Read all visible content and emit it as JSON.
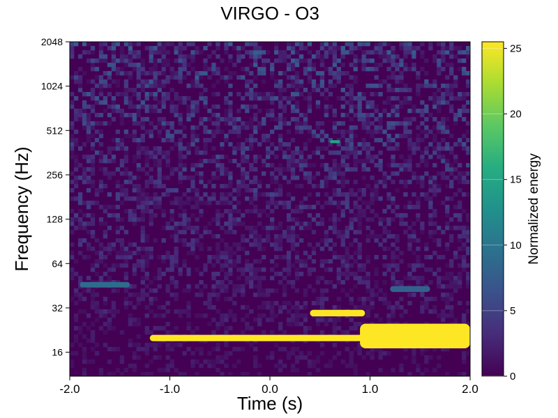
{
  "chart_data": {
    "type": "heatmap",
    "title": "VIRGO - O3",
    "xlabel": "Time (s)",
    "ylabel": "Frequency (Hz)",
    "x_range": [
      -2.0,
      2.0
    ],
    "x_ticks": [
      -2.0,
      -1.0,
      0.0,
      1.0,
      2.0
    ],
    "x_tick_labels": [
      "-2.0",
      "-1.0",
      "0.0",
      "1.0",
      "2.0"
    ],
    "y_scale": "log2",
    "y_range": [
      11,
      2048
    ],
    "y_ticks": [
      16,
      32,
      64,
      128,
      256,
      512,
      1024,
      2048
    ],
    "y_tick_labels": [
      "16",
      "32",
      "64",
      "128",
      "256",
      "512",
      "1024",
      "2048"
    ],
    "colorbar": {
      "label": "Normalized energy",
      "range": [
        0,
        25.5
      ],
      "ticks": [
        0,
        5,
        10,
        15,
        20,
        25
      ],
      "tick_labels": [
        "0",
        "5",
        "10",
        "15",
        "20",
        "25"
      ],
      "colormap": "viridis",
      "colors": [
        "#440154",
        "#472c7a",
        "#3b518b",
        "#2c718e",
        "#21918c",
        "#27ad81",
        "#5cc863",
        "#aadc32",
        "#fde725"
      ]
    },
    "features": [
      {
        "t_start": -1.2,
        "t_end": 1.0,
        "f_low": 19,
        "f_high": 21,
        "energy": 25.5
      },
      {
        "t_start": 0.4,
        "t_end": 0.95,
        "f_low": 28,
        "f_high": 31,
        "energy": 25.5
      },
      {
        "t_start": 0.9,
        "t_end": 2.0,
        "f_low": 17,
        "f_high": 25,
        "energy": 25.5
      },
      {
        "t_start": -1.9,
        "t_end": -1.4,
        "f_low": 44,
        "f_high": 48,
        "energy": 9
      },
      {
        "t_start": 1.2,
        "t_end": 1.6,
        "f_low": 41,
        "f_high": 45,
        "energy": 8
      },
      {
        "t_start": 0.6,
        "t_end": 0.7,
        "f_low": 420,
        "f_high": 440,
        "energy": 15
      }
    ]
  }
}
